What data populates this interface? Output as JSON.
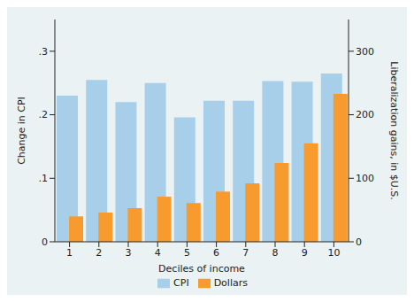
{
  "chart_data": {
    "type": "bar",
    "x_label": "Deciles of income",
    "y_label": "Change in CPI",
    "y2_label": "Liberalization gains, in $U.S.",
    "categories": [
      "1",
      "2",
      "3",
      "4",
      "5",
      "6",
      "7",
      "8",
      "9",
      "10"
    ],
    "series": [
      {
        "name": "CPI",
        "color": "#a8cfe9",
        "values": [
          0.23,
          0.255,
          0.22,
          0.25,
          0.196,
          0.222,
          0.222,
          0.253,
          0.252,
          0.265
        ]
      },
      {
        "name": "Dollars",
        "color": "#f89b2e",
        "axis": "y2",
        "values": [
          40,
          46,
          53,
          71,
          61,
          79,
          92,
          124,
          155,
          233
        ]
      }
    ],
    "ylim": [
      0,
      0.35
    ],
    "yticks": [
      0,
      {
        "value": 0.1,
        "label": ".1"
      },
      {
        "value": 0.2,
        "label": ".2"
      },
      {
        "value": 0.3,
        "label": ".3"
      }
    ],
    "y2lim": [
      0,
      350
    ],
    "y2ticks": [
      0,
      100,
      200,
      300
    ],
    "grid": false,
    "legend": "bottom"
  }
}
